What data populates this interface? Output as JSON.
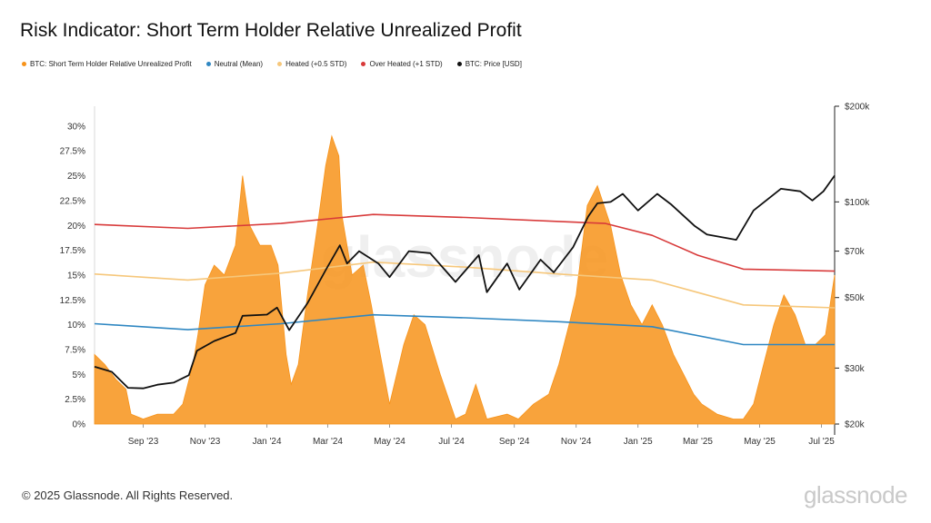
{
  "chart_data": {
    "type": "area",
    "title": "Risk Indicator: Short Term Holder Relative Unrealized Profit",
    "x_ticks": [
      "Sep '23",
      "Nov '23",
      "Jan '24",
      "Mar '24",
      "May '24",
      "Jul '24",
      "Sep '24",
      "Nov '24",
      "Jan '25",
      "Mar '25",
      "May '25",
      "Jul '25"
    ],
    "x_range": [
      "2023-07-15",
      "2025-07-14"
    ],
    "y_left_ticks": [
      "0%",
      "2.5%",
      "5%",
      "7.5%",
      "10%",
      "12.5%",
      "15%",
      "17.5%",
      "20%",
      "22.5%",
      "25%",
      "27.5%",
      "30%"
    ],
    "ylim_left": [
      0,
      32
    ],
    "y_right_ticks": [
      "$20k",
      "$30k",
      "$50k",
      "$70k",
      "$100k",
      "$200k"
    ],
    "y_right_tick_values": [
      20000,
      30000,
      50000,
      70000,
      100000,
      200000
    ],
    "ylim_right": [
      20000,
      200000
    ],
    "y_right_scale": "log",
    "legend_position": "top-left",
    "grid": false,
    "series": [
      {
        "name": "BTC: Short Term Holder Relative Unrealized Profit",
        "color": "#f7931a",
        "kind": "area",
        "points": [
          [
            "2023-07-15",
            7
          ],
          [
            "2023-07-25",
            6
          ],
          [
            "2023-08-05",
            4.5
          ],
          [
            "2023-08-15",
            3.5
          ],
          [
            "2023-08-20",
            1
          ],
          [
            "2023-09-01",
            0.5
          ],
          [
            "2023-09-15",
            1
          ],
          [
            "2023-10-01",
            1
          ],
          [
            "2023-10-10",
            2
          ],
          [
            "2023-10-20",
            6
          ],
          [
            "2023-10-25",
            9
          ],
          [
            "2023-11-01",
            14
          ],
          [
            "2023-11-10",
            16
          ],
          [
            "2023-11-20",
            15
          ],
          [
            "2023-12-01",
            18
          ],
          [
            "2023-12-08",
            25
          ],
          [
            "2023-12-15",
            20
          ],
          [
            "2023-12-25",
            18
          ],
          [
            "2024-01-05",
            18
          ],
          [
            "2024-01-12",
            16
          ],
          [
            "2024-01-20",
            7
          ],
          [
            "2024-01-25",
            4
          ],
          [
            "2024-02-01",
            6
          ],
          [
            "2024-02-10",
            13
          ],
          [
            "2024-02-20",
            20
          ],
          [
            "2024-02-28",
            26
          ],
          [
            "2024-03-05",
            29
          ],
          [
            "2024-03-12",
            27
          ],
          [
            "2024-03-15",
            21
          ],
          [
            "2024-03-25",
            15
          ],
          [
            "2024-04-05",
            16
          ],
          [
            "2024-04-13",
            12
          ],
          [
            "2024-04-20",
            8
          ],
          [
            "2024-05-01",
            2
          ],
          [
            "2024-05-15",
            8
          ],
          [
            "2024-05-25",
            11
          ],
          [
            "2024-06-05",
            10
          ],
          [
            "2024-06-20",
            5
          ],
          [
            "2024-07-05",
            0.5
          ],
          [
            "2024-07-15",
            1
          ],
          [
            "2024-07-25",
            4
          ],
          [
            "2024-08-05",
            0.5
          ],
          [
            "2024-08-25",
            1
          ],
          [
            "2024-09-05",
            0.5
          ],
          [
            "2024-09-20",
            2
          ],
          [
            "2024-10-05",
            3
          ],
          [
            "2024-10-15",
            6
          ],
          [
            "2024-10-25",
            10
          ],
          [
            "2024-11-01",
            13
          ],
          [
            "2024-11-12",
            22
          ],
          [
            "2024-11-22",
            24
          ],
          [
            "2024-12-05",
            20
          ],
          [
            "2024-12-15",
            15
          ],
          [
            "2024-12-25",
            12
          ],
          [
            "2025-01-05",
            10
          ],
          [
            "2025-01-15",
            12
          ],
          [
            "2025-01-25",
            10
          ],
          [
            "2025-02-05",
            7
          ],
          [
            "2025-02-15",
            5
          ],
          [
            "2025-02-25",
            3
          ],
          [
            "2025-03-05",
            2
          ],
          [
            "2025-03-20",
            1
          ],
          [
            "2025-04-05",
            0.5
          ],
          [
            "2025-04-15",
            0.5
          ],
          [
            "2025-04-25",
            2
          ],
          [
            "2025-05-05",
            6
          ],
          [
            "2025-05-15",
            10
          ],
          [
            "2025-05-25",
            13
          ],
          [
            "2025-06-05",
            11
          ],
          [
            "2025-06-15",
            8
          ],
          [
            "2025-06-25",
            8
          ],
          [
            "2025-07-05",
            9
          ],
          [
            "2025-07-14",
            15
          ]
        ]
      },
      {
        "name": "Neutral (Mean)",
        "color": "#2f87c2",
        "kind": "line",
        "points": [
          [
            "2023-07-15",
            10.1
          ],
          [
            "2023-10-15",
            9.5
          ],
          [
            "2024-01-15",
            10.1
          ],
          [
            "2024-04-15",
            11.0
          ],
          [
            "2024-07-15",
            10.7
          ],
          [
            "2024-10-15",
            10.3
          ],
          [
            "2025-01-15",
            9.8
          ],
          [
            "2025-04-15",
            8.0
          ],
          [
            "2025-07-14",
            8.0
          ]
        ]
      },
      {
        "name": "Heated (+0.5 STD)",
        "color": "#f6c77b",
        "kind": "line",
        "points": [
          [
            "2023-07-15",
            15.1
          ],
          [
            "2023-10-15",
            14.5
          ],
          [
            "2024-01-15",
            15.2
          ],
          [
            "2024-04-15",
            16.3
          ],
          [
            "2024-07-15",
            15.8
          ],
          [
            "2024-10-15",
            15.1
          ],
          [
            "2025-01-15",
            14.5
          ],
          [
            "2025-04-15",
            12.0
          ],
          [
            "2025-07-14",
            11.7
          ]
        ]
      },
      {
        "name": "Over Heated (+1 STD)",
        "color": "#d83a3a",
        "kind": "line",
        "points": [
          [
            "2023-07-15",
            20.1
          ],
          [
            "2023-10-15",
            19.7
          ],
          [
            "2024-01-15",
            20.2
          ],
          [
            "2024-04-15",
            21.1
          ],
          [
            "2024-07-15",
            20.8
          ],
          [
            "2024-10-15",
            20.4
          ],
          [
            "2024-11-30",
            20.2
          ],
          [
            "2025-01-15",
            19.0
          ],
          [
            "2025-03-01",
            17.0
          ],
          [
            "2025-04-15",
            15.6
          ],
          [
            "2025-07-14",
            15.4
          ]
        ]
      },
      {
        "name": "BTC: Price [USD]",
        "color": "#111111",
        "kind": "line",
        "axis": "right",
        "points": [
          [
            "2023-07-15",
            30300
          ],
          [
            "2023-08-01",
            29200
          ],
          [
            "2023-08-17",
            26000
          ],
          [
            "2023-09-01",
            25900
          ],
          [
            "2023-09-15",
            26600
          ],
          [
            "2023-10-01",
            27000
          ],
          [
            "2023-10-16",
            28500
          ],
          [
            "2023-10-24",
            34000
          ],
          [
            "2023-11-10",
            36500
          ],
          [
            "2023-12-01",
            38700
          ],
          [
            "2023-12-08",
            43800
          ],
          [
            "2024-01-01",
            44200
          ],
          [
            "2024-01-11",
            46500
          ],
          [
            "2024-01-23",
            39500
          ],
          [
            "2024-02-10",
            48000
          ],
          [
            "2024-02-28",
            61000
          ],
          [
            "2024-03-13",
            73000
          ],
          [
            "2024-03-20",
            64000
          ],
          [
            "2024-04-01",
            70000
          ],
          [
            "2024-04-20",
            64000
          ],
          [
            "2024-05-01",
            58000
          ],
          [
            "2024-05-20",
            70000
          ],
          [
            "2024-06-10",
            69000
          ],
          [
            "2024-07-05",
            56000
          ],
          [
            "2024-07-28",
            68000
          ],
          [
            "2024-08-05",
            52000
          ],
          [
            "2024-08-25",
            64000
          ],
          [
            "2024-09-06",
            53000
          ],
          [
            "2024-09-27",
            65800
          ],
          [
            "2024-10-10",
            60000
          ],
          [
            "2024-10-29",
            72000
          ],
          [
            "2024-11-13",
            90000
          ],
          [
            "2024-11-22",
            99000
          ],
          [
            "2024-12-05",
            100000
          ],
          [
            "2024-12-17",
            106000
          ],
          [
            "2025-01-01",
            94000
          ],
          [
            "2025-01-20",
            106000
          ],
          [
            "2025-02-03",
            98000
          ],
          [
            "2025-02-26",
            84000
          ],
          [
            "2025-03-10",
            79000
          ],
          [
            "2025-04-08",
            76000
          ],
          [
            "2025-04-25",
            94000
          ],
          [
            "2025-05-22",
            110000
          ],
          [
            "2025-06-10",
            108000
          ],
          [
            "2025-06-22",
            101000
          ],
          [
            "2025-07-03",
            108000
          ],
          [
            "2025-07-14",
            121000
          ]
        ]
      }
    ]
  },
  "watermark": "glassnode",
  "footer": {
    "copyright": "© 2025 Glassnode. All Rights Reserved.",
    "brand": "glassnode"
  }
}
